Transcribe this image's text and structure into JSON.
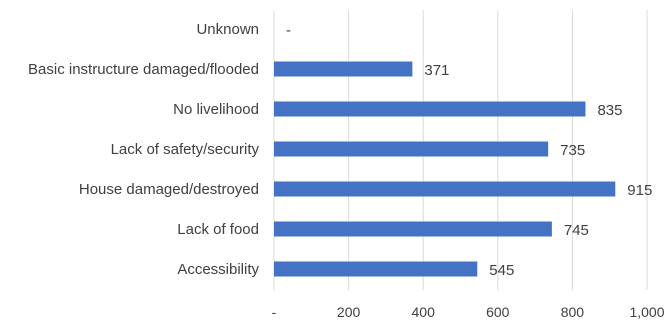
{
  "chart_data": {
    "type": "bar",
    "orientation": "horizontal",
    "categories": [
      "Unknown",
      "Basic instructure damaged/flooded",
      "No livelihood",
      "Lack of safety/security",
      "House damaged/destroyed",
      "Lack of food",
      "Accessibility"
    ],
    "values": [
      0,
      371,
      835,
      735,
      915,
      745,
      545
    ],
    "data_labels": [
      "-",
      "371",
      "835",
      "735",
      "915",
      "745",
      "545"
    ],
    "xlim": [
      0,
      1000
    ],
    "x_ticks": [
      0,
      200,
      400,
      600,
      800,
      1000
    ],
    "x_tick_labels": [
      "-",
      "200",
      "400",
      "600",
      "800",
      "1,000"
    ],
    "grid": "vertical",
    "legend": "none",
    "bar_color": "#4472C4",
    "grid_color": "#D9D9D9",
    "text_color": "#404040"
  }
}
